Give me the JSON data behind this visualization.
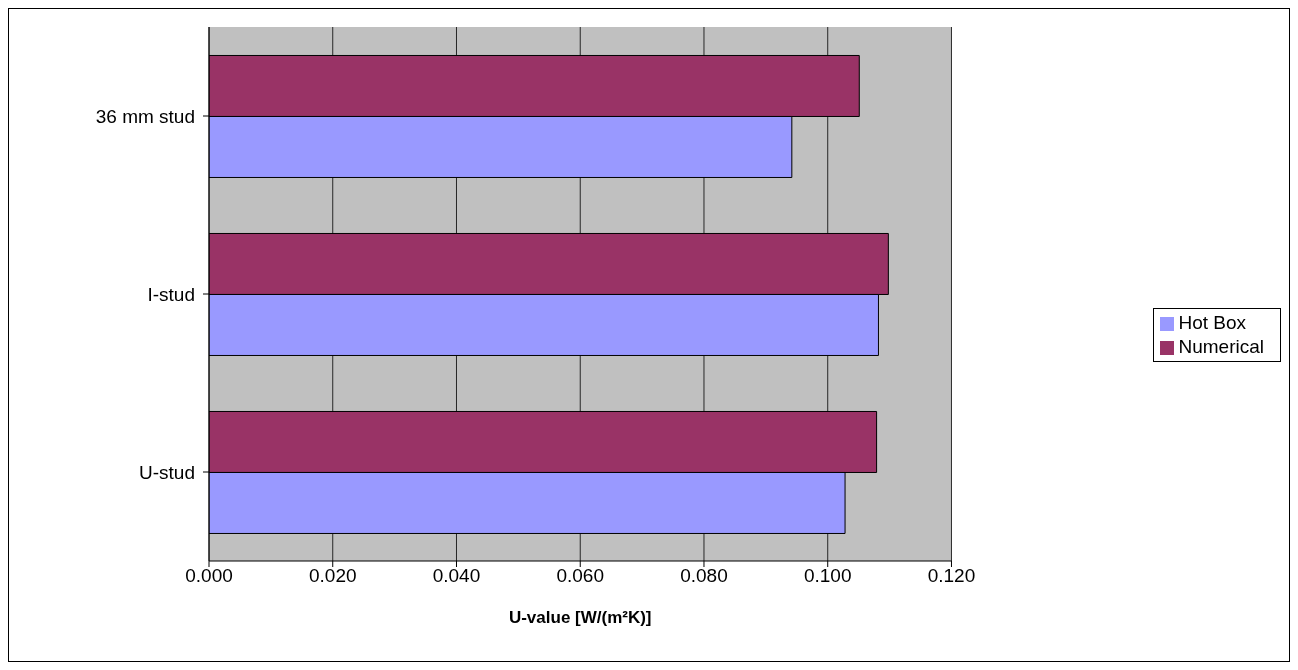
{
  "chart_data": {
    "type": "bar",
    "orientation": "horizontal",
    "xlabel": "U-value [W/(m²K)]",
    "categories": [
      "36 mm stud",
      "I-stud",
      "U-stud"
    ],
    "series": [
      {
        "name": "Numerical",
        "color": "#993366",
        "values": [
          0.1051,
          0.1098,
          0.1079
        ]
      },
      {
        "name": "Hot Box",
        "color": "#9999ff",
        "values": [
          0.0942,
          0.1082,
          0.1028
        ]
      }
    ],
    "xlim": [
      0,
      0.12
    ],
    "xticks": [
      {
        "value": 0,
        "label": "0.000"
      },
      {
        "value": 0.02,
        "label": "0.020"
      },
      {
        "value": 0.04,
        "label": "0.040"
      },
      {
        "value": 0.06,
        "label": "0.060"
      },
      {
        "value": 0.08,
        "label": "0.080"
      },
      {
        "value": 0.1,
        "label": "0.100"
      },
      {
        "value": 0.12,
        "label": "0.120"
      }
    ],
    "grid": "x",
    "legend": "right"
  }
}
